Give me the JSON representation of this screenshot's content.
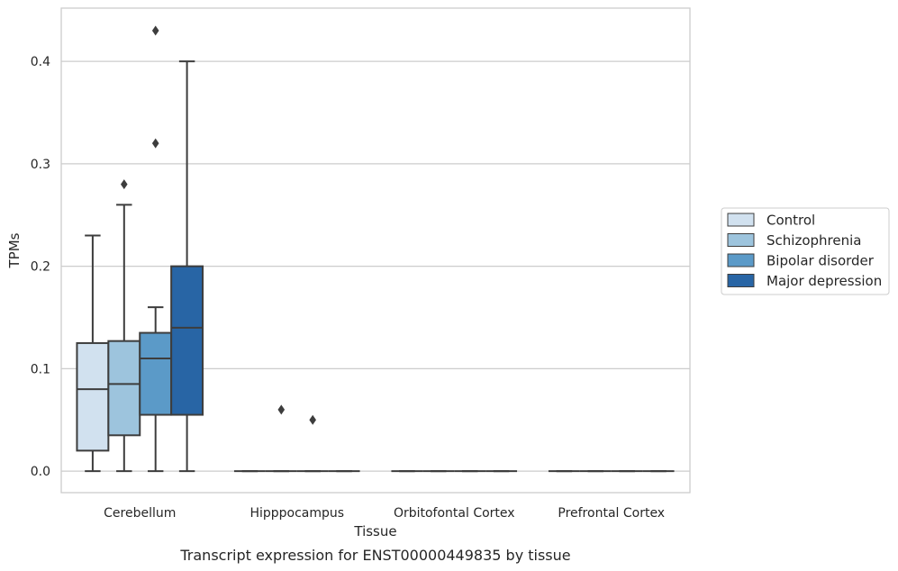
{
  "caption": "Transcript expression for ENST00000449835 by tissue",
  "chart_data": {
    "type": "box",
    "xlabel": "Tissue",
    "ylabel": "TPMs",
    "ylim": [
      -0.021,
      0.452
    ],
    "yticks": [
      0.0,
      0.1,
      0.2,
      0.3,
      0.4
    ],
    "ytick_labels": [
      "0.0",
      "0.1",
      "0.2",
      "0.3",
      "0.4"
    ],
    "grid": "horizontal",
    "legend_position": "right",
    "categories": [
      "Cerebellum",
      "Hipppocampus",
      "Orbitofontal Cortex",
      "Prefrontal Cortex"
    ],
    "series": [
      {
        "name": "Control",
        "color": "#d1e1ef",
        "boxes": [
          {
            "min": 0.0,
            "q1": 0.02,
            "median": 0.08,
            "q3": 0.125,
            "max": 0.23,
            "outliers": []
          },
          {
            "min": 0.0,
            "q1": 0.0,
            "median": 0.0,
            "q3": 0.0,
            "max": 0.0,
            "outliers": []
          },
          {
            "min": 0.0,
            "q1": 0.0,
            "median": 0.0,
            "q3": 0.0,
            "max": 0.0,
            "outliers": []
          },
          {
            "min": 0.0,
            "q1": 0.0,
            "median": 0.0,
            "q3": 0.0,
            "max": 0.0,
            "outliers": []
          }
        ]
      },
      {
        "name": "Schizophrenia",
        "color": "#9dc4dd",
        "boxes": [
          {
            "min": 0.0,
            "q1": 0.035,
            "median": 0.085,
            "q3": 0.127,
            "max": 0.26,
            "outliers": [
              0.28
            ]
          },
          {
            "min": 0.0,
            "q1": 0.0,
            "median": 0.0,
            "q3": 0.0,
            "max": 0.0,
            "outliers": [
              0.06
            ]
          },
          {
            "min": 0.0,
            "q1": 0.0,
            "median": 0.0,
            "q3": 0.0,
            "max": 0.0,
            "outliers": []
          },
          {
            "min": 0.0,
            "q1": 0.0,
            "median": 0.0,
            "q3": 0.0,
            "max": 0.0,
            "outliers": []
          }
        ]
      },
      {
        "name": "Bipolar disorder",
        "color": "#5b9ac8",
        "boxes": [
          {
            "min": 0.0,
            "q1": 0.055,
            "median": 0.11,
            "q3": 0.135,
            "max": 0.16,
            "outliers": [
              0.32,
              0.43
            ]
          },
          {
            "min": 0.0,
            "q1": 0.0,
            "median": 0.0,
            "q3": 0.0,
            "max": 0.0,
            "outliers": [
              0.05
            ]
          },
          {
            "min": 0.0,
            "q1": 0.0,
            "median": 0.0,
            "q3": 0.0,
            "max": 0.0,
            "outliers": []
          },
          {
            "min": 0.0,
            "q1": 0.0,
            "median": 0.0,
            "q3": 0.0,
            "max": 0.0,
            "outliers": []
          }
        ]
      },
      {
        "name": "Major depression",
        "color": "#2865a5",
        "boxes": [
          {
            "min": 0.0,
            "q1": 0.055,
            "median": 0.14,
            "q3": 0.2,
            "max": 0.4,
            "outliers": []
          },
          {
            "min": 0.0,
            "q1": 0.0,
            "median": 0.0,
            "q3": 0.0,
            "max": 0.0,
            "outliers": []
          },
          {
            "min": 0.0,
            "q1": 0.0,
            "median": 0.0,
            "q3": 0.0,
            "max": 0.0,
            "outliers": []
          },
          {
            "min": 0.0,
            "q1": 0.0,
            "median": 0.0,
            "q3": 0.0,
            "max": 0.0,
            "outliers": []
          }
        ]
      }
    ]
  }
}
